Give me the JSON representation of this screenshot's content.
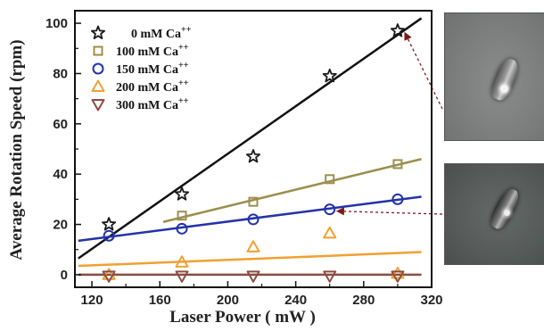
{
  "chart_data": {
    "type": "scatter",
    "xlabel": "Laser Power ( mW )",
    "ylabel": "Average Rotation Speed (rpm)",
    "xlim": [
      110,
      320
    ],
    "ylim": [
      -5,
      105
    ],
    "xticks": [
      120,
      160,
      200,
      240,
      280,
      320
    ],
    "yticks": [
      0,
      20,
      40,
      60,
      80,
      100
    ],
    "xtick_labels": [
      "120",
      "160",
      "200",
      "240",
      "280",
      "320"
    ],
    "ytick_labels": [
      "0",
      "20",
      "40",
      "60",
      "80",
      "100"
    ],
    "legend_position": "top-left",
    "grid": false,
    "series": [
      {
        "name": "0 mM Ca",
        "name_sup": "++",
        "marker": "star",
        "color": "#1a1a1a",
        "x": [
          130,
          173,
          215,
          260,
          300
        ],
        "y": [
          20,
          32,
          47,
          79,
          97
        ],
        "fit": {
          "x": [
            112,
            314
          ],
          "y": [
            6.5,
            102
          ],
          "color": "#111111"
        }
      },
      {
        "name": "100 mM Ca",
        "name_sup": "++",
        "marker": "square",
        "color": "#9c8f4d",
        "x": [
          173,
          215,
          260,
          300
        ],
        "y": [
          23.5,
          29,
          38,
          44
        ],
        "fit": {
          "x": [
            162,
            314
          ],
          "y": [
            21,
            46
          ],
          "color": "#9c8f4d"
        }
      },
      {
        "name": "150 mM Ca",
        "name_sup": "++",
        "marker": "circle",
        "color": "#2233aa",
        "x": [
          130,
          173,
          215,
          260,
          300
        ],
        "y": [
          15.5,
          18.3,
          22,
          26,
          30
        ],
        "fit": {
          "x": [
            112,
            314
          ],
          "y": [
            13.5,
            31
          ],
          "color": "#2233aa"
        }
      },
      {
        "name": "200 mM Ca",
        "name_sup": "++",
        "marker": "triangle-up",
        "color": "#f0a030",
        "x": [
          130,
          173,
          215,
          260,
          300
        ],
        "y": [
          0,
          5,
          11,
          16.5,
          0.5
        ],
        "fit": {
          "x": [
            112,
            314
          ],
          "y": [
            3.5,
            9
          ],
          "color": "#f0a030"
        }
      },
      {
        "name": "300 mM Ca",
        "name_sup": "++",
        "marker": "triangle-down",
        "color": "#8b4c40",
        "x": [
          130,
          173,
          215,
          260,
          300
        ],
        "y": [
          -0.5,
          -0.5,
          -0.5,
          -0.5,
          -0.5
        ],
        "fit": {
          "x": [
            112,
            314
          ],
          "y": [
            0,
            0
          ],
          "color": "#8b4c40"
        }
      }
    ],
    "annotations": [
      {
        "from_series": 0,
        "point_index": 4,
        "target_image": "micro-a",
        "style": "dashed-arrow",
        "color": "#7a1a1a"
      },
      {
        "from_series": 2,
        "point_index": 3,
        "target_image": "micro-b",
        "style": "dashed-arrow",
        "color": "#7a1a1a"
      }
    ]
  },
  "images": [
    {
      "id": "micro-a",
      "content": "microscope-cell-image"
    },
    {
      "id": "micro-b",
      "content": "microscope-cell-image"
    }
  ]
}
